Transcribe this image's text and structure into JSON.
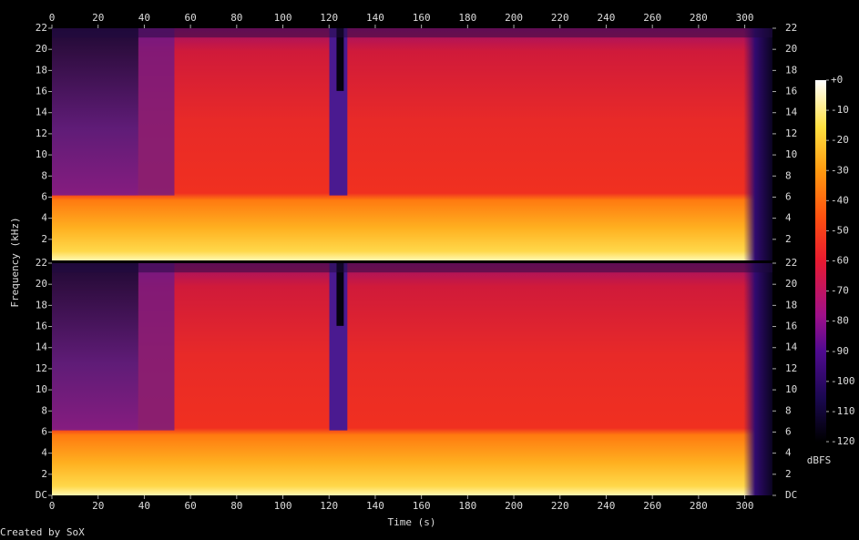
{
  "chart_data": [
    {
      "type": "spectrogram",
      "y_label": "Frequency (kHz)",
      "xlim": [
        0,
        312
      ],
      "xticks": [
        0,
        20,
        40,
        60,
        80,
        100,
        120,
        140,
        160,
        180,
        200,
        220,
        240,
        260,
        280,
        300
      ],
      "ylim": [
        0,
        22
      ],
      "yticks": [
        2,
        4,
        6,
        8,
        10,
        12,
        14,
        16,
        18,
        20,
        22
      ]
    },
    {
      "type": "spectrogram",
      "x_label": "Time (s)",
      "xlim": [
        0,
        312
      ],
      "xticks": [
        0,
        20,
        40,
        60,
        80,
        100,
        120,
        140,
        160,
        180,
        200,
        220,
        240,
        260,
        280,
        300
      ],
      "ylim": [
        0,
        22
      ],
      "yticks": [
        {
          "value": 0,
          "label": "DC"
        },
        2,
        4,
        6,
        8,
        10,
        12,
        14,
        16,
        18,
        20,
        22
      ]
    }
  ],
  "colorbar": {
    "label": "dBFS",
    "lim": [
      -120,
      0
    ],
    "ticks": [
      {
        "value": 0,
        "label": "+0"
      },
      -10,
      -20,
      -30,
      -40,
      -50,
      -60,
      -70,
      -80,
      -90,
      -100,
      -110,
      -120
    ]
  },
  "footer": "Created by SoX"
}
